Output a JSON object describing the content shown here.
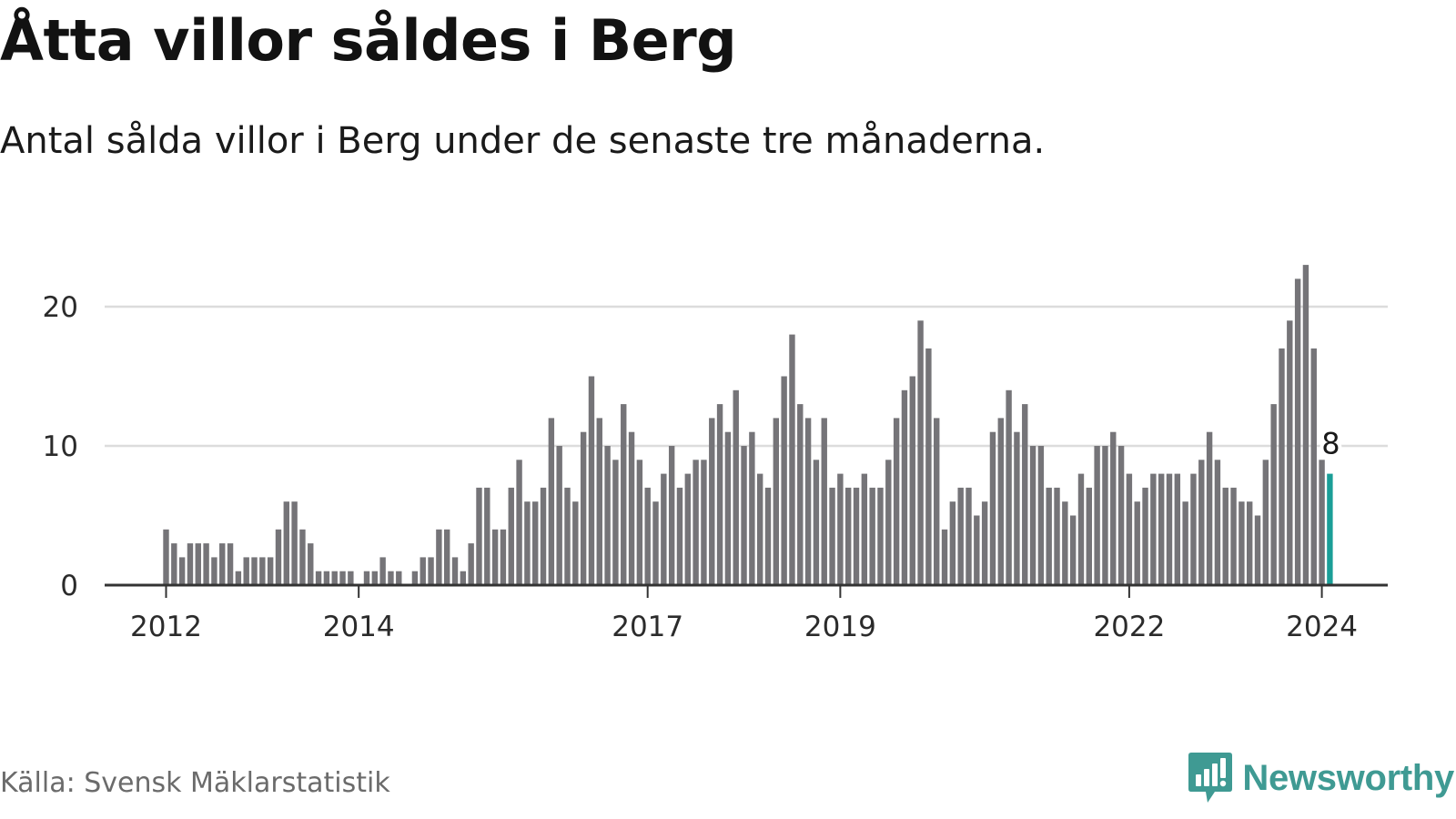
{
  "title": "Åtta villor såldes i Berg",
  "subtitle": "Antal sålda villor i Berg under de senaste tre månaderna.",
  "source": "Källa: Svensk Mäklarstatistik",
  "brand": {
    "name": "Newsworthy",
    "icon": "newsworthy-logo-icon",
    "color": "#3f9a93"
  },
  "colors": {
    "bar": "#757478",
    "highlight": "#1a9e97",
    "grid": "#dcdcdc",
    "axis": "#333333"
  },
  "chart_data": {
    "type": "bar",
    "title": "Åtta villor såldes i Berg",
    "xlabel": "",
    "ylabel": "",
    "ylim": [
      0,
      23
    ],
    "yticks": [
      0,
      10,
      20
    ],
    "start_month": "2012-01",
    "xticks": [
      {
        "label": "2012",
        "index": 0
      },
      {
        "label": "2014",
        "index": 24
      },
      {
        "label": "2017",
        "index": 60
      },
      {
        "label": "2019",
        "index": 84
      },
      {
        "label": "2022",
        "index": 120
      },
      {
        "label": "2024",
        "index": 144
      }
    ],
    "values": [
      4,
      3,
      2,
      3,
      3,
      3,
      2,
      3,
      3,
      1,
      2,
      2,
      2,
      2,
      4,
      6,
      6,
      4,
      3,
      1,
      1,
      1,
      1,
      1,
      0,
      1,
      1,
      2,
      1,
      1,
      0,
      1,
      2,
      2,
      4,
      4,
      2,
      1,
      3,
      7,
      7,
      4,
      4,
      7,
      9,
      6,
      6,
      7,
      12,
      10,
      7,
      6,
      11,
      15,
      12,
      10,
      9,
      13,
      11,
      9,
      7,
      6,
      8,
      10,
      7,
      8,
      9,
      9,
      12,
      13,
      11,
      14,
      10,
      11,
      8,
      7,
      12,
      15,
      18,
      13,
      12,
      9,
      12,
      7,
      8,
      7,
      7,
      8,
      7,
      7,
      9,
      12,
      14,
      15,
      19,
      17,
      12,
      4,
      6,
      7,
      7,
      5,
      6,
      11,
      12,
      14,
      11,
      13,
      10,
      10,
      7,
      7,
      6,
      5,
      8,
      7,
      10,
      10,
      11,
      10,
      8,
      6,
      7,
      8,
      8,
      8,
      8,
      6,
      8,
      9,
      11,
      9,
      7,
      7,
      6,
      6,
      5,
      9,
      13,
      17,
      19,
      22,
      23,
      17,
      9,
      8
    ],
    "highlight_index": 145,
    "annotation": {
      "text": "8",
      "index": 145
    }
  }
}
